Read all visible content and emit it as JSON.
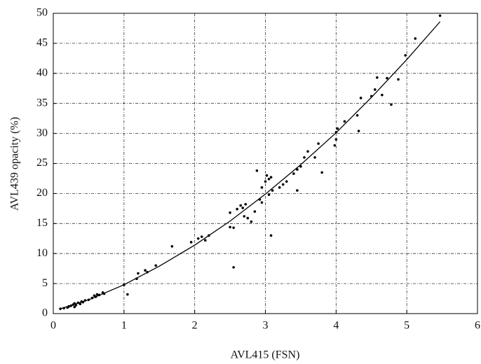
{
  "chart_data": {
    "type": "scatter",
    "x_label": "AVL415 (FSN)",
    "y_label": "AVL439 opacity (%)",
    "xlim": [
      0,
      6
    ],
    "ylim": [
      0,
      50
    ],
    "xticks": [
      0,
      1,
      2,
      3,
      4,
      5,
      6
    ],
    "yticks": [
      0,
      5,
      10,
      15,
      20,
      25,
      30,
      35,
      40,
      45,
      50
    ],
    "grid": true,
    "series": [
      {
        "type": "scatter",
        "color": "#000000",
        "x": [
          0.1,
          0.15,
          0.2,
          0.22,
          0.25,
          0.28,
          0.3,
          0.3,
          0.32,
          0.35,
          0.38,
          0.4,
          0.42,
          0.45,
          0.5,
          0.55,
          0.58,
          0.6,
          0.62,
          0.65,
          0.7,
          0.72,
          1.0,
          1.05,
          1.2,
          1.18,
          1.3,
          1.33,
          1.45,
          1.68,
          1.95,
          2.05,
          2.1,
          2.15,
          2.2,
          2.5,
          2.5,
          2.55,
          2.55,
          2.6,
          2.65,
          2.68,
          2.7,
          2.72,
          2.75,
          2.8,
          2.85,
          2.88,
          2.92,
          2.95,
          2.95,
          3.0,
          3.02,
          3.05,
          3.05,
          3.08,
          3.08,
          3.1,
          3.2,
          3.25,
          3.3,
          3.4,
          3.45,
          3.45,
          3.5,
          3.55,
          3.6,
          3.7,
          3.75,
          3.8,
          3.98,
          4.0,
          4.0,
          4.02,
          4.12,
          4.3,
          4.32,
          4.35,
          4.5,
          4.55,
          4.58,
          4.65,
          4.72,
          4.78,
          4.88,
          4.98,
          5.12,
          5.47
        ],
        "values": [
          0.8,
          0.9,
          1.0,
          1.2,
          1.3,
          1.5,
          1.1,
          1.7,
          1.4,
          1.8,
          1.6,
          2.0,
          1.9,
          2.2,
          2.3,
          2.6,
          3.0,
          2.8,
          3.2,
          3.1,
          3.5,
          3.3,
          4.8,
          3.2,
          6.7,
          5.8,
          7.2,
          6.9,
          8.0,
          11.2,
          11.9,
          12.5,
          12.8,
          12.2,
          13.0,
          14.4,
          16.8,
          14.3,
          7.7,
          17.4,
          18.0,
          17.6,
          16.2,
          18.2,
          15.9,
          15.3,
          17.0,
          23.8,
          19.0,
          21.0,
          18.5,
          22.0,
          23.0,
          19.8,
          22.4,
          22.7,
          13.0,
          20.5,
          21.0,
          21.5,
          22.0,
          23.3,
          20.5,
          24.0,
          24.5,
          26.0,
          27.0,
          26.0,
          28.3,
          23.5,
          28.0,
          29.0,
          30.2,
          30.8,
          32.0,
          33.0,
          30.4,
          35.9,
          36.2,
          37.3,
          39.3,
          36.4,
          39.2,
          34.8,
          39.0,
          43.0,
          45.8,
          49.6
        ]
      },
      {
        "type": "line",
        "color": "#000000",
        "x": [
          0.1,
          0.5,
          1,
          1.5,
          2,
          2.5,
          3,
          3.5,
          4,
          4.5,
          5,
          5.47
        ],
        "values": [
          0.8,
          2.3,
          4.8,
          7.9,
          11.4,
          15.4,
          19.9,
          24.8,
          30.1,
          36.0,
          42.3,
          48.6
        ]
      }
    ]
  }
}
